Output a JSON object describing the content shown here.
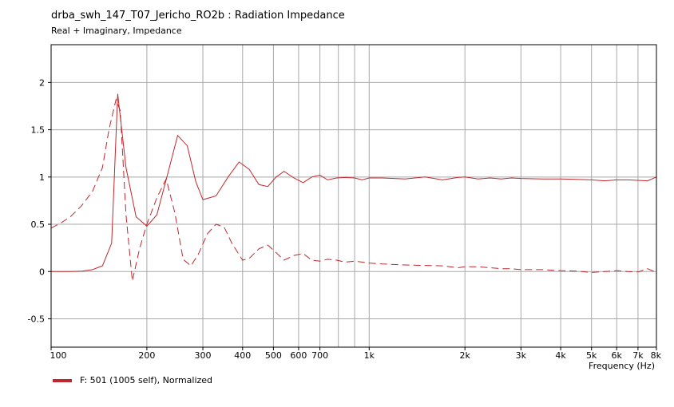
{
  "title": "drba_swh_147_T07_Jericho_RO2b : Radiation Impedance",
  "subtitle": "Real + Imaginary, Impedance",
  "legend_label": "F: 501 (1005 self), Normalized",
  "colors": {
    "series": "#c0272d",
    "grid": "#a8a8a8",
    "axis": "#000000"
  },
  "chart_data": {
    "type": "line",
    "title": "drba_swh_147_T07_Jericho_RO2b : Radiation Impedance",
    "subtitle": "Real + Imaginary, Impedance",
    "xlabel": "Frequency  (Hz)",
    "ylabel": "",
    "xscale": "log",
    "xlim": [
      100,
      8000
    ],
    "ylim": [
      -0.8,
      2.4
    ],
    "grid": true,
    "legend_position": "bottom-left",
    "yticks": [
      2,
      1.5,
      1,
      0.5,
      0,
      -0.5
    ],
    "ytick_labels": [
      "2",
      "1.5",
      "1",
      "0.5",
      "0",
      "-0.5"
    ],
    "xticks": [
      100,
      200,
      300,
      400,
      500,
      600,
      700,
      1000,
      2000,
      3000,
      4000,
      5000,
      6000,
      7000,
      8000
    ],
    "xtick_labels": [
      "100",
      "200",
      "300",
      "400",
      "500",
      "600",
      "700",
      "1k",
      "2k",
      "3k",
      "4k",
      "5k",
      "6k",
      "7k",
      "8k"
    ],
    "minor_gridlines_x": [
      800,
      900
    ],
    "series": [
      {
        "name": "F: 501 (1005 self), Normalized",
        "style": "solid",
        "x": [
          100,
          108,
          115,
          125,
          135,
          145,
          155,
          162,
          172,
          185,
          200,
          215,
          232,
          250,
          268,
          285,
          300,
          330,
          360,
          390,
          420,
          450,
          480,
          510,
          540,
          580,
          620,
          660,
          700,
          740,
          790,
          840,
          900,
          950,
          1000,
          1100,
          1300,
          1500,
          1700,
          1900,
          2000,
          2200,
          2400,
          2600,
          2800,
          3000,
          3500,
          4000,
          4500,
          5000,
          5500,
          6000,
          6500,
          7000,
          7500,
          8000
        ],
        "y": [
          0,
          0,
          0,
          0.005,
          0.02,
          0.06,
          0.3,
          1.88,
          1.1,
          0.58,
          0.48,
          0.6,
          1.02,
          1.44,
          1.33,
          0.95,
          0.76,
          0.8,
          1.0,
          1.16,
          1.08,
          0.92,
          0.9,
          1.0,
          1.06,
          0.99,
          0.94,
          1.0,
          1.02,
          0.97,
          0.99,
          0.995,
          0.99,
          0.97,
          0.99,
          0.99,
          0.98,
          1.0,
          0.97,
          0.995,
          1.0,
          0.98,
          0.99,
          0.98,
          0.99,
          0.985,
          0.98,
          0.98,
          0.975,
          0.97,
          0.96,
          0.97,
          0.97,
          0.965,
          0.96,
          1.0
        ]
      },
      {
        "name": "F: 501 (1005 self), Normalized",
        "style": "dashed",
        "x": [
          100,
          108,
          115,
          125,
          135,
          145,
          152,
          160,
          165,
          172,
          180,
          190,
          200,
          215,
          230,
          245,
          260,
          275,
          290,
          310,
          330,
          350,
          370,
          400,
          420,
          450,
          480,
          510,
          540,
          580,
          620,
          660,
          700,
          740,
          790,
          840,
          900,
          950,
          1000,
          1100,
          1300,
          1500,
          1700,
          1900,
          2000,
          2200,
          2400,
          2600,
          2800,
          3000,
          3500,
          4000,
          4500,
          5000,
          5500,
          6000,
          6500,
          7000,
          7500,
          8000
        ],
        "y": [
          0.46,
          0.52,
          0.58,
          0.7,
          0.85,
          1.1,
          1.5,
          1.82,
          1.7,
          0.6,
          -0.1,
          0.25,
          0.5,
          0.78,
          0.98,
          0.62,
          0.13,
          0.06,
          0.18,
          0.4,
          0.5,
          0.47,
          0.3,
          0.12,
          0.14,
          0.24,
          0.28,
          0.2,
          0.12,
          0.17,
          0.19,
          0.12,
          0.11,
          0.13,
          0.12,
          0.1,
          0.11,
          0.1,
          0.09,
          0.08,
          0.07,
          0.065,
          0.06,
          0.04,
          0.05,
          0.05,
          0.04,
          0.03,
          0.03,
          0.02,
          0.02,
          0.01,
          0.005,
          -0.01,
          0,
          0.01,
          0,
          -0.005,
          0.03,
          -0.01
        ]
      }
    ]
  }
}
